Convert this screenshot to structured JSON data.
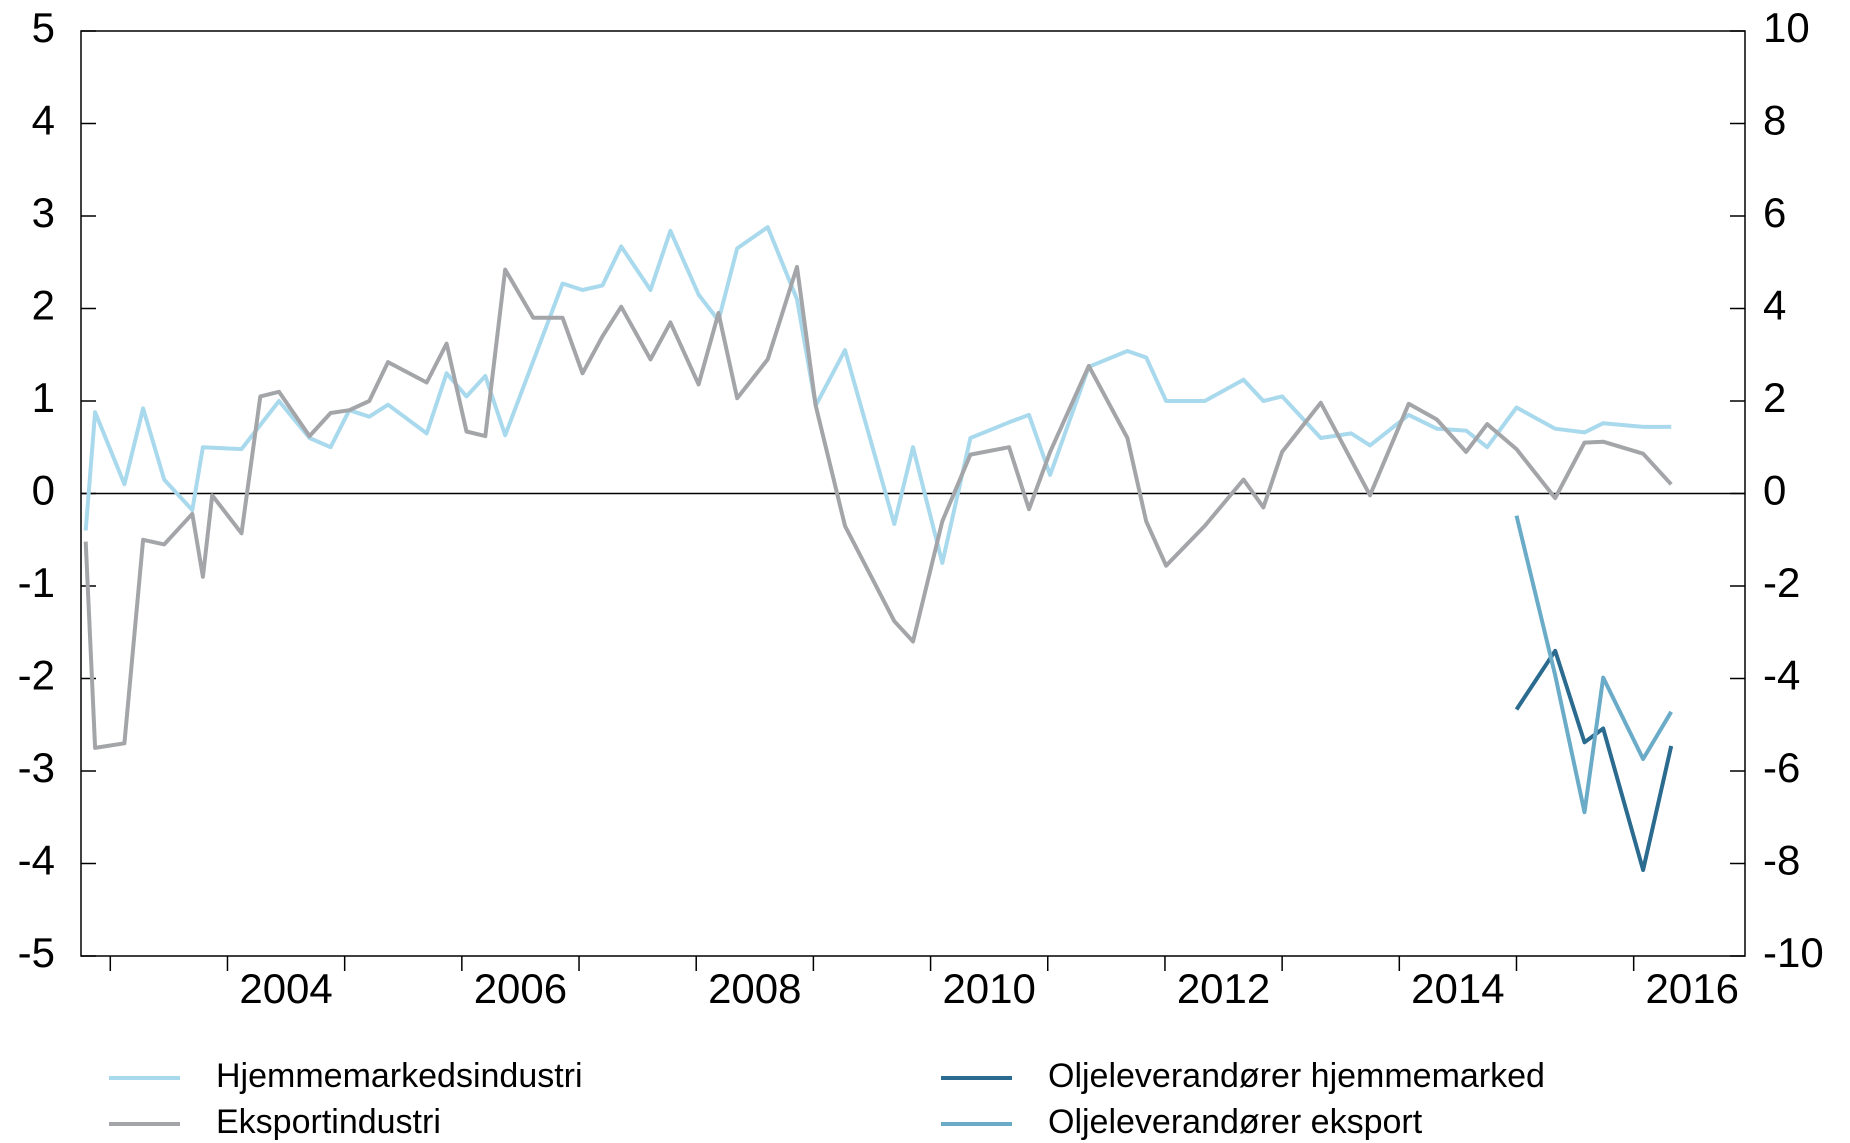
{
  "chart_data": {
    "type": "line",
    "xlim": [
      2002.75,
      2016.95
    ],
    "xticks": [
      2003,
      2004,
      2005,
      2006,
      2007,
      2008,
      2009,
      2010,
      2011,
      2012,
      2013,
      2014,
      2015,
      2016
    ],
    "ylim": [
      -5,
      5
    ],
    "yticks": [
      -5,
      -4,
      -3,
      -2,
      -1,
      0,
      1,
      2,
      3,
      4,
      5
    ],
    "y2lim": [
      -10,
      10
    ],
    "y2ticks": [
      -10,
      -8,
      -6,
      -4,
      -2,
      0,
      2,
      4,
      6,
      8,
      10
    ],
    "series": [
      {
        "name": "Hjemmemarkedsindustri",
        "color": "#a9d9ec",
        "x": [
          2002.79,
          2002.87,
          2003.12,
          2003.28,
          2003.46,
          2003.7,
          2003.79,
          2004.12,
          2004.44,
          2004.7,
          2004.88,
          2005.04,
          2005.21,
          2005.37,
          2005.7,
          2005.87,
          2006.04,
          2006.2,
          2006.37,
          2006.86,
          2007.03,
          2007.2,
          2007.36,
          2007.61,
          2007.78,
          2008.02,
          2008.19,
          2008.35,
          2008.61,
          2008.86,
          2009.02,
          2009.27,
          2009.69,
          2009.85,
          2010.1,
          2010.34,
          2010.67,
          2010.84,
          2011.02,
          2011.35,
          2011.68,
          2011.84,
          2012.01,
          2012.34,
          2012.67,
          2012.84,
          2013.0,
          2013.33,
          2013.59,
          2013.75,
          2014.08,
          2014.32,
          2014.57,
          2014.75,
          2015.0,
          2015.33,
          2015.58,
          2015.74,
          2016.08,
          2016.32
        ],
        "values": [
          -0.4,
          0.88,
          0.1,
          0.92,
          0.15,
          -0.18,
          0.5,
          0.48,
          1.0,
          0.6,
          0.5,
          0.9,
          0.83,
          0.96,
          0.65,
          1.3,
          1.05,
          1.27,
          0.63,
          2.27,
          2.2,
          2.25,
          2.67,
          2.2,
          2.84,
          2.15,
          1.87,
          2.65,
          2.88,
          2.1,
          0.95,
          1.55,
          -0.33,
          0.5,
          -0.75,
          0.6,
          0.77,
          0.85,
          0.2,
          1.37,
          1.54,
          1.47,
          1.0,
          1.0,
          1.23,
          1.0,
          1.05,
          0.6,
          0.65,
          0.52,
          0.85,
          0.7,
          0.68,
          0.5,
          0.93,
          0.7,
          0.66,
          0.76,
          0.72,
          0.72
        ]
      },
      {
        "name": "Eksportindustri",
        "color": "#a3a5a8",
        "x": [
          2002.79,
          2002.87,
          2003.12,
          2003.28,
          2003.46,
          2003.7,
          2003.79,
          2003.87,
          2004.12,
          2004.28,
          2004.44,
          2004.7,
          2004.88,
          2005.04,
          2005.21,
          2005.37,
          2005.7,
          2005.87,
          2006.04,
          2006.2,
          2006.37,
          2006.61,
          2006.86,
          2007.03,
          2007.2,
          2007.36,
          2007.61,
          2007.78,
          2008.02,
          2008.19,
          2008.35,
          2008.61,
          2008.86,
          2009.02,
          2009.27,
          2009.69,
          2009.85,
          2010.1,
          2010.34,
          2010.67,
          2010.84,
          2011.02,
          2011.35,
          2011.68,
          2011.84,
          2012.01,
          2012.34,
          2012.67,
          2012.84,
          2013.0,
          2013.33,
          2013.75,
          2014.08,
          2014.32,
          2014.57,
          2014.75,
          2015.0,
          2015.33,
          2015.58,
          2015.74,
          2016.08,
          2016.32
        ],
        "values": [
          -0.52,
          -2.75,
          -2.7,
          -0.5,
          -0.55,
          -0.22,
          -0.9,
          -0.02,
          -0.43,
          1.05,
          1.1,
          0.62,
          0.87,
          0.9,
          1.0,
          1.42,
          1.2,
          1.62,
          0.67,
          0.62,
          2.42,
          1.9,
          1.9,
          1.3,
          1.7,
          2.02,
          1.45,
          1.85,
          1.18,
          1.95,
          1.03,
          1.45,
          2.45,
          0.95,
          -0.35,
          -1.38,
          -1.6,
          -0.3,
          0.42,
          0.5,
          -0.17,
          0.45,
          1.38,
          0.6,
          -0.3,
          -0.78,
          -0.35,
          0.15,
          -0.15,
          0.45,
          0.98,
          -0.02,
          0.97,
          0.8,
          0.45,
          0.75,
          0.48,
          -0.05,
          0.55,
          0.56,
          0.43,
          0.1
        ]
      },
      {
        "name": "Oljeleverandører hjemmemarked",
        "color": "#2a6b8f",
        "axis": "y2",
        "x": [
          2015.0,
          2015.33,
          2015.58,
          2015.74,
          2016.08,
          2016.32
        ],
        "values": [
          -4.67,
          -3.4,
          -5.38,
          -5.08,
          -8.14,
          -5.46
        ]
      },
      {
        "name": "Oljeleverandører eksport",
        "color": "#6aabc8",
        "axis": "y2",
        "x": [
          2015.0,
          2015.33,
          2015.58,
          2015.74,
          2016.08,
          2016.32
        ],
        "values": [
          -0.48,
          -3.93,
          -6.89,
          -3.98,
          -5.74,
          -4.72
        ]
      }
    ]
  }
}
